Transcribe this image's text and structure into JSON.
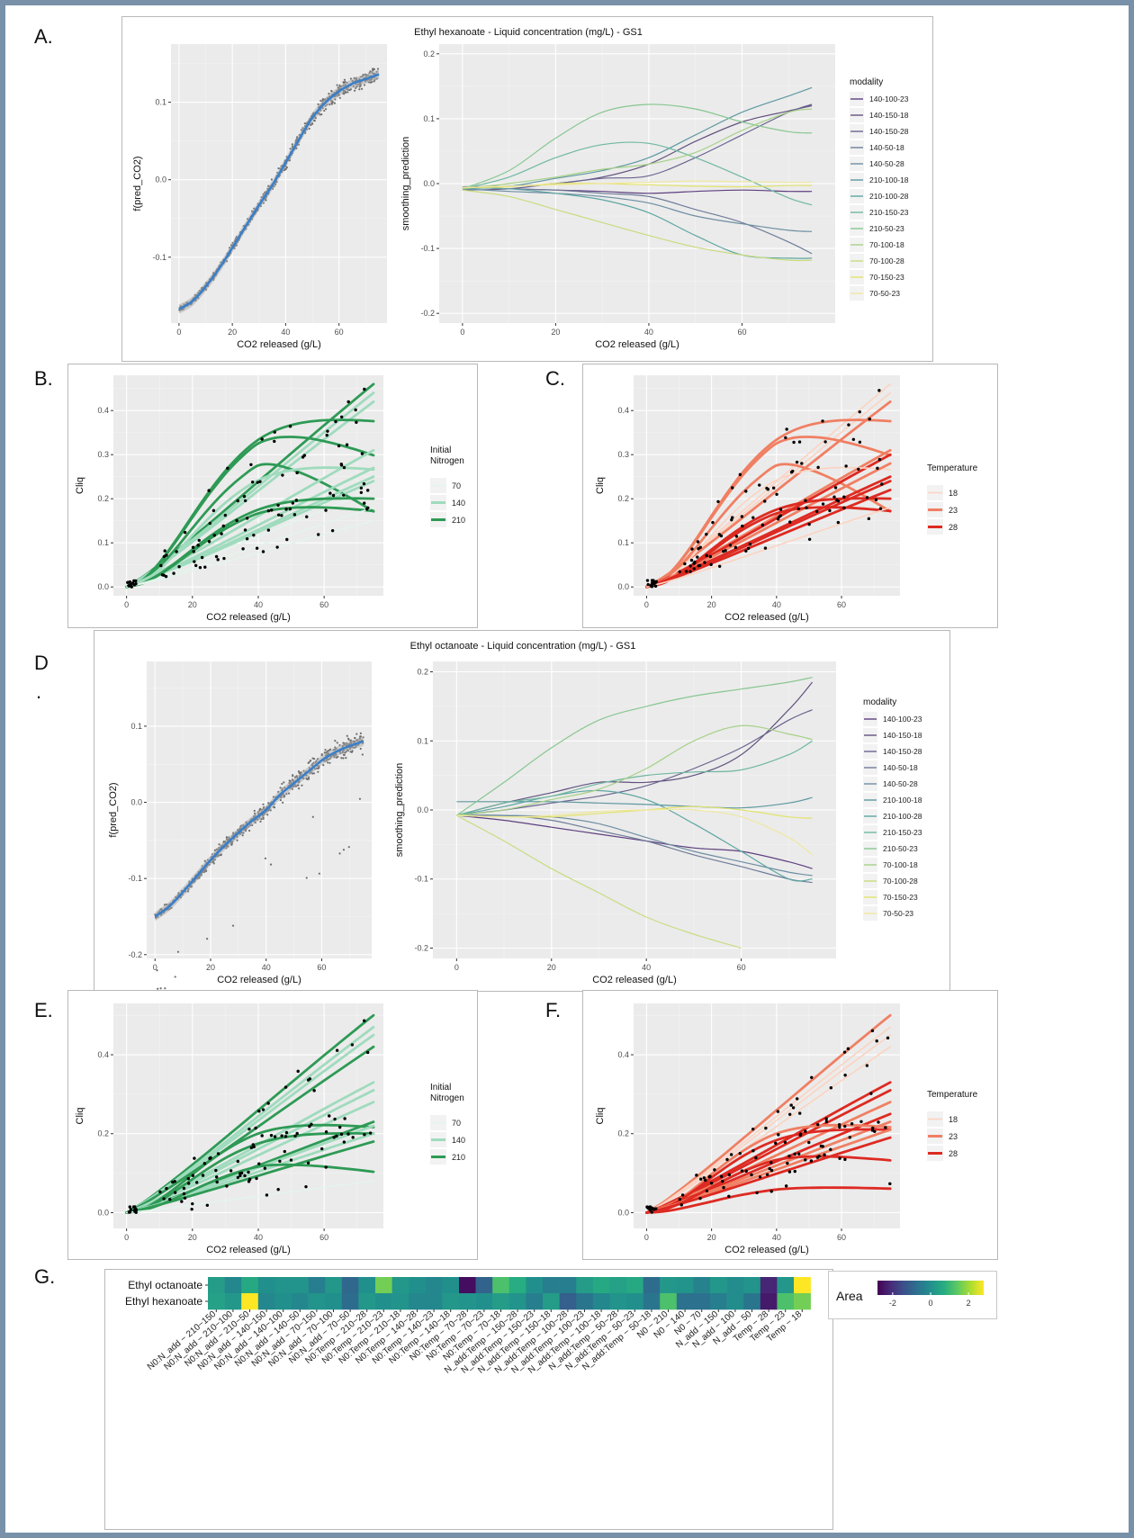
{
  "panel_labels": {
    "A": "A.",
    "B": "B.",
    "C": "C.",
    "D": "D",
    "D_dot": ".",
    "E": "E.",
    "F": "F.",
    "G": "G."
  },
  "colors": {
    "panel_bg": "#ebebeb",
    "grid_major": "#ffffff",
    "grid_minor": "#f4f4f4",
    "smooth_blue": "#3a7fc9",
    "point_gray": "#6e6e6e",
    "point_black": "#000000",
    "green": [
      "#e4f4ec",
      "#9fdbbd",
      "#2e9a55"
    ],
    "red": [
      "#fcd3c1",
      "#f07f63",
      "#dd2a22"
    ]
  },
  "modality_colors": [
    "#5e3f7f",
    "#62517f",
    "#6a6490",
    "#6f7c99",
    "#6d8ea2",
    "#5e98a0",
    "#5ea6a2",
    "#6fb8a0",
    "#87c790",
    "#a6d187",
    "#c8dc7f",
    "#e2e36b",
    "#efe8a0"
  ],
  "charts": {
    "A": {
      "title": "Ethyl hexanoate - Liquid concentration (mg/L) - GS1",
      "left": {
        "type": "scatter",
        "xlabel": "CO2 released (g/L)",
        "ylabel": "f(pred_CO2)",
        "xlim": [
          -3,
          78
        ],
        "ylim": [
          -0.185,
          0.175
        ],
        "xticks": [
          0,
          20,
          40,
          60
        ],
        "yticks": [
          -0.1,
          0.0,
          0.1
        ],
        "ytick_labels": [
          "-0.1",
          "0.0",
          "0.1"
        ],
        "smooth": {
          "x": [
            0,
            5,
            10,
            15,
            20,
            25,
            30,
            35,
            40,
            45,
            50,
            55,
            60,
            65,
            70,
            75
          ],
          "y": [
            -0.167,
            -0.157,
            -0.138,
            -0.115,
            -0.088,
            -0.06,
            -0.033,
            -0.007,
            0.022,
            0.052,
            0.08,
            0.1,
            0.114,
            0.124,
            0.13,
            0.136
          ]
        }
      },
      "right": {
        "type": "line",
        "xlabel": "CO2 released (g/L)",
        "ylabel": "smoothing_prediction",
        "xlim": [
          -5,
          80
        ],
        "ylim": [
          -0.215,
          0.215
        ],
        "xticks": [
          0,
          20,
          40,
          60
        ],
        "yticks": [
          -0.2,
          -0.1,
          0.0,
          0.1,
          0.2
        ],
        "ytick_labels": [
          "-0.2",
          "-0.1",
          "0.0",
          "0.1",
          "0.2"
        ],
        "x": [
          0,
          10,
          20,
          30,
          40,
          50,
          60,
          70,
          75
        ],
        "legend_title": "modality",
        "series": [
          {
            "name": "140-100-23",
            "values": [
              -0.005,
              -0.008,
              -0.01,
              -0.012,
              -0.015,
              -0.012,
              -0.01,
              -0.012,
              -0.012
            ]
          },
          {
            "name": "140-150-18",
            "values": [
              -0.005,
              -0.004,
              0.0,
              0.01,
              0.03,
              0.065,
              0.095,
              0.112,
              0.12
            ]
          },
          {
            "name": "140-150-28",
            "values": [
              -0.01,
              -0.008,
              0.0,
              0.008,
              0.012,
              0.04,
              0.075,
              0.11,
              0.122
            ]
          },
          {
            "name": "140-50-18",
            "values": [
              -0.005,
              -0.008,
              -0.01,
              -0.015,
              -0.02,
              -0.04,
              -0.06,
              -0.09,
              -0.108
            ]
          },
          {
            "name": "140-50-28",
            "values": [
              -0.008,
              -0.012,
              -0.015,
              -0.02,
              -0.03,
              -0.05,
              -0.062,
              -0.072,
              -0.074
            ]
          },
          {
            "name": "210-100-18",
            "values": [
              -0.008,
              -0.004,
              0.008,
              0.02,
              0.04,
              0.075,
              0.11,
              0.135,
              0.148
            ]
          },
          {
            "name": "210-100-28",
            "values": [
              -0.006,
              -0.008,
              -0.015,
              -0.025,
              -0.045,
              -0.08,
              -0.11,
              -0.115,
              -0.115
            ]
          },
          {
            "name": "210-150-23",
            "values": [
              -0.008,
              0.01,
              0.04,
              0.06,
              0.062,
              0.04,
              0.01,
              -0.022,
              -0.033
            ]
          },
          {
            "name": "210-50-23",
            "values": [
              -0.008,
              0.02,
              0.07,
              0.11,
              0.122,
              0.115,
              0.095,
              0.08,
              0.078
            ]
          },
          {
            "name": "70-100-18",
            "values": [
              -0.008,
              0.0,
              0.01,
              0.022,
              0.03,
              0.048,
              0.082,
              0.11,
              0.115
            ]
          },
          {
            "name": "70-100-28",
            "values": [
              -0.01,
              -0.02,
              -0.04,
              -0.06,
              -0.08,
              -0.098,
              -0.11,
              -0.118,
              -0.118
            ]
          },
          {
            "name": "70-150-23",
            "values": [
              -0.006,
              -0.005,
              0.0,
              0.0,
              -0.002,
              -0.004,
              -0.005,
              -0.003,
              -0.003
            ]
          },
          {
            "name": "70-50-23",
            "values": [
              -0.006,
              -0.004,
              -0.002,
              0.0,
              0.002,
              0.004,
              0.003,
              0.002,
              0.002
            ]
          }
        ]
      }
    },
    "B": {
      "type": "line",
      "xlabel": "CO2 released (g/L)",
      "ylabel": "Cliq",
      "xlim": [
        -4,
        78
      ],
      "ylim": [
        -0.02,
        0.48
      ],
      "xticks": [
        0,
        20,
        40,
        60
      ],
      "yticks": [
        0.0,
        0.1,
        0.2,
        0.3,
        0.4
      ],
      "ytick_labels": [
        "0.0",
        "0.1",
        "0.2",
        "0.3",
        "0.4"
      ],
      "legend_title_lines": [
        "Initial",
        "Nitrogen"
      ],
      "legend": [
        "70",
        "140",
        "210"
      ]
    },
    "C": {
      "type": "line",
      "xlabel": "CO2 released (g/L)",
      "ylabel": "Cliq",
      "xlim": [
        -4,
        78
      ],
      "ylim": [
        -0.02,
        0.48
      ],
      "xticks": [
        0,
        20,
        40,
        60
      ],
      "yticks": [
        0.0,
        0.1,
        0.2,
        0.3,
        0.4
      ],
      "ytick_labels": [
        "0.0",
        "0.1",
        "0.2",
        "0.3",
        "0.4"
      ],
      "legend_title_lines": [
        "Temperature"
      ],
      "legend": [
        "18",
        "23",
        "28"
      ]
    },
    "D": {
      "title": "Ethyl octanoate - Liquid concentration (mg/L) - GS1",
      "left": {
        "type": "scatter",
        "xlabel": "CO2 released (g/L)",
        "ylabel": "f(pred_CO2)",
        "xlim": [
          -3,
          78
        ],
        "ylim": [
          -0.205,
          0.185
        ],
        "xticks": [
          0,
          20,
          40,
          60
        ],
        "yticks": [
          -0.2,
          -0.1,
          0.0,
          0.1
        ],
        "ytick_labels": [
          "-0.2",
          "-0.1",
          "0.0",
          "0.1"
        ],
        "smooth": {
          "x": [
            0,
            5,
            10,
            15,
            20,
            25,
            30,
            35,
            40,
            45,
            50,
            55,
            60,
            65,
            70,
            75
          ],
          "y": [
            -0.15,
            -0.137,
            -0.118,
            -0.097,
            -0.076,
            -0.057,
            -0.04,
            -0.024,
            -0.01,
            0.01,
            0.025,
            0.04,
            0.055,
            0.066,
            0.074,
            0.08
          ]
        }
      },
      "right": {
        "type": "line",
        "xlabel": "CO2 released (g/L)",
        "ylabel": "smoothing_prediction",
        "xlim": [
          -5,
          80
        ],
        "ylim": [
          -0.215,
          0.215
        ],
        "xticks": [
          0,
          20,
          40,
          60
        ],
        "yticks": [
          -0.2,
          -0.1,
          0.0,
          0.1,
          0.2
        ],
        "ytick_labels": [
          "-0.2",
          "-0.1",
          "0.0",
          "0.1",
          "0.2"
        ],
        "x": [
          0,
          10,
          20,
          30,
          40,
          50,
          60,
          70,
          75
        ],
        "legend_title": "modality",
        "series": [
          {
            "name": "140-100-23",
            "values": [
              -0.008,
              -0.015,
              -0.025,
              -0.035,
              -0.045,
              -0.055,
              -0.06,
              -0.075,
              -0.085
            ]
          },
          {
            "name": "140-150-18",
            "values": [
              -0.008,
              0.01,
              0.025,
              0.04,
              0.04,
              0.05,
              0.08,
              0.145,
              0.185
            ]
          },
          {
            "name": "140-150-28",
            "values": [
              -0.008,
              0.0,
              0.01,
              0.02,
              0.035,
              0.06,
              0.09,
              0.13,
              0.145
            ]
          },
          {
            "name": "140-50-18",
            "values": [
              -0.008,
              -0.008,
              -0.015,
              -0.03,
              -0.045,
              -0.065,
              -0.082,
              -0.1,
              -0.105
            ]
          },
          {
            "name": "140-50-28",
            "values": [
              -0.008,
              -0.008,
              -0.01,
              -0.02,
              -0.04,
              -0.06,
              -0.075,
              -0.09,
              -0.095
            ]
          },
          {
            "name": "210-100-18",
            "values": [
              0.012,
              0.012,
              0.012,
              0.01,
              0.008,
              0.005,
              0.003,
              0.01,
              0.018
            ]
          },
          {
            "name": "210-100-28",
            "values": [
              -0.008,
              0.005,
              0.02,
              0.028,
              0.015,
              -0.02,
              -0.06,
              -0.1,
              -0.1
            ]
          },
          {
            "name": "210-150-23",
            "values": [
              -0.008,
              0.01,
              0.02,
              0.038,
              0.05,
              0.055,
              0.058,
              0.08,
              0.1
            ]
          },
          {
            "name": "210-50-23",
            "values": [
              -0.008,
              0.04,
              0.09,
              0.13,
              0.15,
              0.165,
              0.175,
              0.185,
              0.192
            ]
          },
          {
            "name": "70-100-18",
            "values": [
              -0.008,
              0.0,
              0.015,
              0.03,
              0.06,
              0.1,
              0.122,
              0.11,
              0.102
            ]
          },
          {
            "name": "70-100-28",
            "values": [
              -0.008,
              -0.045,
              -0.085,
              -0.12,
              -0.155,
              -0.18,
              -0.2,
              null,
              null
            ]
          },
          {
            "name": "70-150-23",
            "values": [
              -0.008,
              -0.01,
              -0.01,
              -0.005,
              0.0,
              0.005,
              0.0,
              -0.01,
              -0.012
            ]
          },
          {
            "name": "70-50-23",
            "values": [
              -0.008,
              -0.01,
              -0.008,
              -0.002,
              0.0,
              0.0,
              -0.01,
              -0.04,
              -0.065
            ]
          }
        ]
      }
    },
    "E": {
      "type": "line",
      "xlabel": "CO2 released (g/L)",
      "ylabel": "Cliq",
      "xlim": [
        -4,
        78
      ],
      "ylim": [
        -0.04,
        0.53
      ],
      "xticks": [
        0,
        20,
        40,
        60
      ],
      "yticks": [
        0.0,
        0.2,
        0.4
      ],
      "ytick_labels": [
        "0.0",
        "0.2",
        "0.4"
      ],
      "legend_title_lines": [
        "Initial",
        "Nitrogen"
      ],
      "legend": [
        "70",
        "140",
        "210"
      ]
    },
    "F": {
      "type": "line",
      "xlabel": "CO2 released (g/L)",
      "ylabel": "Cliq",
      "xlim": [
        -4,
        78
      ],
      "ylim": [
        -0.04,
        0.53
      ],
      "xticks": [
        0,
        20,
        40,
        60
      ],
      "yticks": [
        0.0,
        0.2,
        0.4
      ],
      "ytick_labels": [
        "0.0",
        "0.2",
        "0.4"
      ],
      "legend_title_lines": [
        "Temperature"
      ],
      "legend": [
        "18",
        "23",
        "28"
      ]
    },
    "G": {
      "type": "heatmap",
      "rows": [
        "Ethyl octanoate",
        "Ethyl hexanoate"
      ],
      "columns": [
        "N0:N_add − 210−150",
        "N0:N_add − 210−100",
        "N0:N_add − 210−50",
        "N0:N_add − 140−150",
        "N0:N_add − 140−100",
        "N0:N_add − 140−50",
        "N0:N_add − 70−150",
        "N0:N_add − 70−100",
        "N0:N_add − 70−50",
        "N0:Temp − 210−28",
        "N0:Temp − 210−23",
        "N0:Temp − 210−18",
        "N0:Temp − 140−28",
        "N0:Temp − 140−23",
        "N0:Temp − 140−18",
        "N0:Temp − 70−28",
        "N0:Temp − 70−23",
        "N0:Temp − 70−18",
        "N_add:Temp − 150−28",
        "N_add:Temp − 150−23",
        "N_add:Temp − 150−18",
        "N_add:Temp − 100−28",
        "N_add:Temp − 100−23",
        "N_add:Temp − 100−18",
        "N_add:Temp − 50−28",
        "N_add:Temp − 50−23",
        "N_add:Temp − 50−18",
        "N0 − 210",
        "N0 − 140",
        "N0 − 70",
        "N_add − 150",
        "N_add − 100",
        "N_add − 50",
        "Temp − 28",
        "Temp − 23",
        "Temp − 18"
      ],
      "values": [
        [
          0.3,
          -0.2,
          0.6,
          0.0,
          0.1,
          0.1,
          -0.4,
          0.2,
          -0.9,
          0.0,
          1.6,
          0.2,
          0.0,
          -0.2,
          0.0,
          -2.6,
          -1.0,
          1.2,
          0.7,
          0.0,
          -0.4,
          -0.4,
          0.3,
          0.6,
          0.4,
          0.6,
          -0.8,
          0.2,
          0.1,
          -0.3,
          0.2,
          -0.1,
          0.1,
          -2.2,
          0.2,
          2.8
        ],
        [
          0.4,
          0.2,
          2.8,
          -0.2,
          0.0,
          -0.2,
          0.1,
          0.0,
          -0.8,
          0.2,
          0.0,
          0.1,
          -0.2,
          -0.2,
          0.2,
          0.1,
          0.0,
          0.3,
          0.1,
          -0.4,
          0.3,
          -1.1,
          -0.6,
          -0.2,
          0.1,
          0.0,
          -0.6,
          1.2,
          -0.7,
          -0.7,
          -0.4,
          -0.1,
          -0.6,
          -2.4,
          1.2,
          1.6
        ]
      ],
      "legend_title": "Area",
      "colorbar_ticks": [
        -2,
        0,
        2
      ],
      "colorbar_tick_labels": [
        "-2",
        "0",
        "2"
      ],
      "vmin": -2.8,
      "vmax": 2.8
    }
  }
}
